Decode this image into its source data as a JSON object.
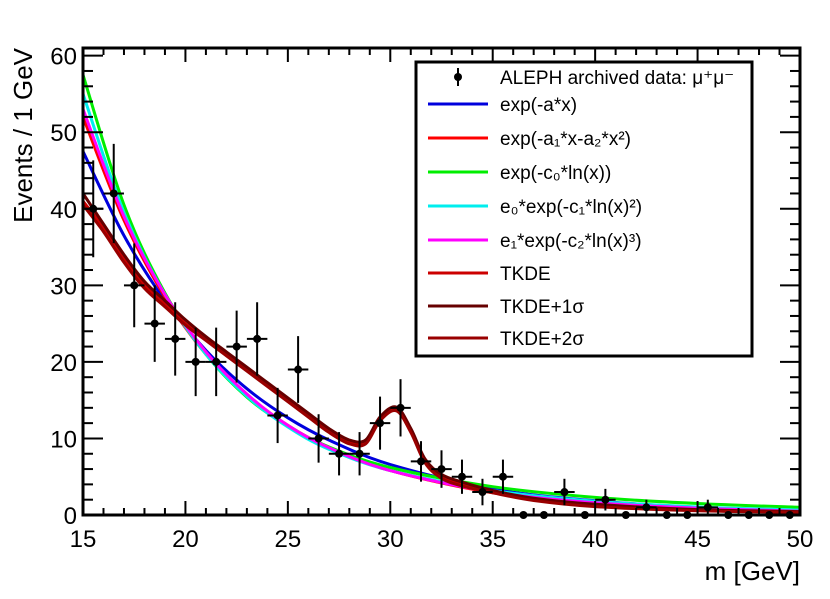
{
  "chart_data": {
    "type": "line",
    "title": "",
    "xlabel": "m [GeV]",
    "ylabel": "Events / 1 GeV",
    "xlim": [
      15,
      50
    ],
    "ylim": [
      0,
      61
    ],
    "xticks": [
      15,
      20,
      25,
      30,
      35,
      40,
      45,
      50
    ],
    "yticks": [
      0,
      10,
      20,
      30,
      40,
      50,
      60
    ],
    "grid": false,
    "legend_position": "top-right",
    "data_points": {
      "name": "ALEPH archived data: μ⁺μ⁻",
      "x": [
        15.5,
        16.5,
        17.5,
        18.5,
        19.5,
        20.5,
        21.5,
        22.5,
        23.5,
        24.5,
        25.5,
        26.5,
        27.5,
        28.5,
        29.5,
        30.5,
        31.5,
        32.5,
        33.5,
        34.5,
        35.5,
        36.5,
        37.5,
        38.5,
        39.5,
        40.5,
        41.5,
        42.5,
        43.5,
        44.5,
        45.5,
        46.5,
        47.5,
        48.5,
        49.5
      ],
      "y": [
        40,
        42,
        30,
        25,
        23,
        20,
        20,
        22,
        23,
        13,
        19,
        10,
        8,
        8,
        12,
        14,
        7,
        6,
        5,
        3,
        5,
        0,
        0,
        3,
        0,
        2,
        0,
        1,
        0,
        0,
        1,
        0,
        0,
        0,
        0
      ]
    },
    "series": [
      {
        "name": "exp(-a*x)",
        "color": "#0000dd",
        "points": [
          [
            15,
            47.5
          ],
          [
            17,
            36.5
          ],
          [
            19,
            28.0
          ],
          [
            21,
            21.5
          ],
          [
            23,
            16.5
          ],
          [
            25,
            12.7
          ],
          [
            27,
            9.8
          ],
          [
            30,
            6.6
          ],
          [
            35,
            3.4
          ],
          [
            40,
            1.85
          ],
          [
            45,
            1.0
          ],
          [
            50,
            0.55
          ]
        ]
      },
      {
        "name": "exp(-a₁*x-a₂*x²)",
        "color": "#ff0000",
        "points": [
          [
            15,
            52.0
          ],
          [
            17,
            38.5
          ],
          [
            19,
            28.5
          ],
          [
            21,
            21.0
          ],
          [
            23,
            15.7
          ],
          [
            25,
            11.7
          ],
          [
            27,
            8.8
          ],
          [
            30,
            5.8
          ],
          [
            35,
            2.9
          ],
          [
            40,
            1.5
          ],
          [
            45,
            0.8
          ],
          [
            50,
            0.45
          ]
        ]
      },
      {
        "name": "exp(-c₀*ln(x))",
        "color": "#00ee00",
        "points": [
          [
            15,
            57.5
          ],
          [
            17,
            40.5
          ],
          [
            19,
            29.0
          ],
          [
            21,
            21.0
          ],
          [
            23,
            15.4
          ],
          [
            25,
            11.6
          ],
          [
            27,
            8.9
          ],
          [
            30,
            6.2
          ],
          [
            35,
            3.7
          ],
          [
            40,
            2.3
          ],
          [
            45,
            1.5
          ],
          [
            50,
            1.0
          ]
        ]
      },
      {
        "name": "e₀*exp(-c₁*ln(x)²)",
        "color": "#00eeee",
        "points": [
          [
            15,
            55.0
          ],
          [
            17,
            39.5
          ],
          [
            19,
            28.8
          ],
          [
            21,
            21.0
          ],
          [
            23,
            15.5
          ],
          [
            25,
            11.5
          ],
          [
            27,
            8.6
          ],
          [
            30,
            5.8
          ],
          [
            35,
            3.2
          ],
          [
            40,
            1.8
          ],
          [
            45,
            1.05
          ],
          [
            50,
            0.65
          ]
        ]
      },
      {
        "name": "e₁*exp(-c₂*ln(x)³)",
        "color": "#ff00ff",
        "points": [
          [
            15,
            53.0
          ],
          [
            17,
            39.0
          ],
          [
            19,
            28.8
          ],
          [
            21,
            21.3
          ],
          [
            23,
            15.8
          ],
          [
            25,
            11.7
          ],
          [
            27,
            8.8
          ],
          [
            30,
            5.8
          ],
          [
            35,
            3.0
          ],
          [
            40,
            1.6
          ],
          [
            45,
            0.9
          ],
          [
            50,
            0.5
          ]
        ]
      },
      {
        "name": "TKDE",
        "color": "#cc0000",
        "points": [
          [
            15,
            41.0
          ],
          [
            16,
            37.5
          ],
          [
            17,
            33.5
          ],
          [
            18,
            30.0
          ],
          [
            19,
            27.5
          ],
          [
            20,
            25.0
          ],
          [
            21,
            23.0
          ],
          [
            22,
            21.0
          ],
          [
            23,
            19.0
          ],
          [
            24,
            17.0
          ],
          [
            25,
            15.0
          ],
          [
            26,
            13.0
          ],
          [
            27,
            11.0
          ],
          [
            28,
            9.5
          ],
          [
            28.8,
            9.5
          ],
          [
            29.5,
            12.5
          ],
          [
            30.3,
            13.8
          ],
          [
            31,
            11.0
          ],
          [
            31.7,
            7.0
          ],
          [
            32.5,
            5.0
          ],
          [
            33.5,
            4.0
          ],
          [
            35,
            3.0
          ],
          [
            37,
            2.0
          ],
          [
            40,
            1.2
          ],
          [
            45,
            0.6
          ],
          [
            50,
            0.4
          ]
        ]
      },
      {
        "name": "TKDE+1σ",
        "color": "#660000",
        "points": [
          [
            15,
            42.0
          ],
          [
            16,
            38.0
          ],
          [
            17,
            34.0
          ],
          [
            18,
            30.5
          ],
          [
            19,
            28.0
          ],
          [
            20,
            25.5
          ],
          [
            21,
            23.3
          ],
          [
            22,
            21.3
          ],
          [
            23,
            19.3
          ],
          [
            24,
            17.3
          ],
          [
            25,
            15.3
          ],
          [
            26,
            13.3
          ],
          [
            27,
            11.3
          ],
          [
            28,
            9.8
          ],
          [
            28.8,
            9.8
          ],
          [
            29.5,
            12.8
          ],
          [
            30.3,
            14.1
          ],
          [
            31,
            11.3
          ],
          [
            31.7,
            7.3
          ],
          [
            32.5,
            5.3
          ],
          [
            33.5,
            4.3
          ],
          [
            35,
            3.2
          ],
          [
            37,
            2.2
          ],
          [
            40,
            1.4
          ],
          [
            45,
            0.7
          ],
          [
            50,
            0.45
          ]
        ]
      },
      {
        "name": "TKDE+2σ",
        "color": "#990000",
        "points": [
          [
            15,
            40.5
          ],
          [
            16,
            37.0
          ],
          [
            17,
            33.0
          ],
          [
            18,
            29.6
          ],
          [
            19,
            27.2
          ],
          [
            20,
            24.8
          ],
          [
            21,
            22.8
          ],
          [
            22,
            20.8
          ],
          [
            23,
            18.8
          ],
          [
            24,
            16.8
          ],
          [
            25,
            14.8
          ],
          [
            26,
            12.8
          ],
          [
            27,
            10.8
          ],
          [
            28,
            9.3
          ],
          [
            28.8,
            9.3
          ],
          [
            29.5,
            12.3
          ],
          [
            30.3,
            13.6
          ],
          [
            31,
            10.8
          ],
          [
            31.7,
            6.8
          ],
          [
            32.5,
            4.8
          ],
          [
            33.5,
            3.8
          ],
          [
            35,
            2.9
          ],
          [
            37,
            1.9
          ],
          [
            40,
            1.1
          ],
          [
            45,
            0.55
          ],
          [
            50,
            0.35
          ]
        ]
      }
    ]
  }
}
